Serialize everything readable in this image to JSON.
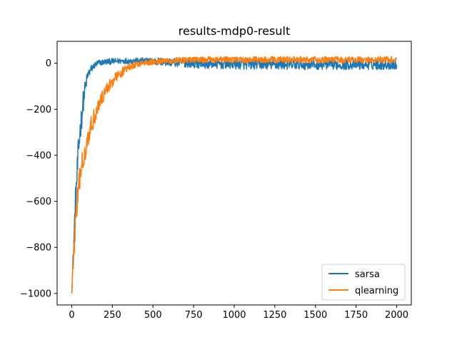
{
  "chart_data": {
    "type": "line",
    "title": "results-mdp0-result",
    "xlabel": "",
    "ylabel": "",
    "xlim": [
      -90,
      2090
    ],
    "ylim": [
      -1050,
      95
    ],
    "xticks": [
      0,
      250,
      500,
      750,
      1000,
      1250,
      1500,
      1750,
      2000
    ],
    "xtick_labels": [
      "0",
      "250",
      "500",
      "750",
      "1000",
      "1250",
      "1500",
      "1750",
      "2000"
    ],
    "yticks": [
      -1000,
      -800,
      -600,
      -400,
      -200,
      0
    ],
    "ytick_labels": [
      "−1000",
      "−800",
      "−600",
      "−400",
      "−200",
      "0"
    ],
    "grid": false,
    "legend_position": "lower-right",
    "series": [
      {
        "name": "sarsa",
        "color": "#1f77b4",
        "x": [
          0,
          10,
          20,
          30,
          40,
          50,
          60,
          70,
          80,
          90,
          100,
          120,
          140,
          160,
          180,
          200,
          225,
          250,
          275,
          300,
          325,
          350,
          375,
          400,
          450,
          500,
          550,
          600,
          650,
          700,
          750,
          800,
          850,
          900,
          950,
          1000,
          1050,
          1100,
          1150,
          1200,
          1250,
          1300,
          1350,
          1400,
          1450,
          1500,
          1550,
          1600,
          1650,
          1700,
          1750,
          1800,
          1850,
          1900,
          1950,
          2000
        ],
        "y": [
          -1000,
          -830,
          -650,
          -520,
          -400,
          -300,
          -240,
          -170,
          -120,
          -80,
          -50,
          -25,
          -10,
          0,
          3,
          5,
          7,
          8,
          9,
          10,
          10,
          10,
          10,
          10,
          9,
          8,
          6,
          5,
          3,
          2,
          0,
          -1,
          -2,
          -3,
          -4,
          -4,
          -5,
          -5,
          -5,
          -5,
          -6,
          -6,
          -6,
          -6,
          -6,
          -6,
          -6,
          -6,
          -6,
          -6,
          -6,
          -6,
          -6,
          -6,
          -6,
          -6
        ],
        "noise_amplitude": [
          0,
          50,
          60,
          70,
          70,
          60,
          60,
          50,
          40,
          30,
          25,
          18,
          15,
          14,
          13,
          13,
          13,
          13,
          13,
          13,
          13,
          13,
          13,
          13,
          15,
          17,
          18,
          18,
          20,
          20,
          20,
          22,
          22,
          22,
          22,
          22,
          22,
          22,
          22,
          22,
          22,
          22,
          22,
          22,
          22,
          22,
          22,
          22,
          22,
          22,
          22,
          22,
          22,
          22,
          22,
          22
        ]
      },
      {
        "name": "qlearning",
        "color": "#ff7f0e",
        "x": [
          0,
          10,
          20,
          30,
          40,
          50,
          60,
          70,
          80,
          90,
          100,
          120,
          140,
          160,
          180,
          200,
          225,
          250,
          275,
          300,
          325,
          350,
          375,
          400,
          425,
          450,
          475,
          500,
          550,
          600,
          650,
          700,
          750,
          800,
          850,
          900,
          950,
          1000,
          1050,
          1100,
          1150,
          1200,
          1250,
          1300,
          1350,
          1400,
          1450,
          1500,
          1550,
          1600,
          1650,
          1700,
          1750,
          1800,
          1850,
          1900,
          1950,
          2000
        ],
        "y": [
          -1000,
          -860,
          -720,
          -640,
          -570,
          -500,
          -450,
          -420,
          -380,
          -350,
          -320,
          -270,
          -230,
          -190,
          -160,
          -130,
          -100,
          -80,
          -60,
          -45,
          -30,
          -20,
          -12,
          -5,
          0,
          3,
          5,
          6,
          8,
          10,
          12,
          13,
          14,
          15,
          15,
          15,
          15,
          15,
          15,
          15,
          15,
          15,
          15,
          15,
          15,
          15,
          15,
          15,
          15,
          15,
          15,
          15,
          15,
          15,
          15,
          15,
          15,
          15
        ],
        "noise_amplitude": [
          0,
          60,
          70,
          70,
          70,
          60,
          60,
          55,
          55,
          50,
          45,
          40,
          40,
          35,
          35,
          30,
          28,
          25,
          22,
          20,
          18,
          16,
          15,
          14,
          13,
          13,
          13,
          13,
          13,
          13,
          13,
          13,
          13,
          13,
          14,
          14,
          14,
          14,
          14,
          14,
          14,
          14,
          14,
          14,
          14,
          14,
          14,
          14,
          14,
          14,
          14,
          14,
          14,
          14,
          14,
          14,
          14,
          14
        ]
      }
    ]
  }
}
